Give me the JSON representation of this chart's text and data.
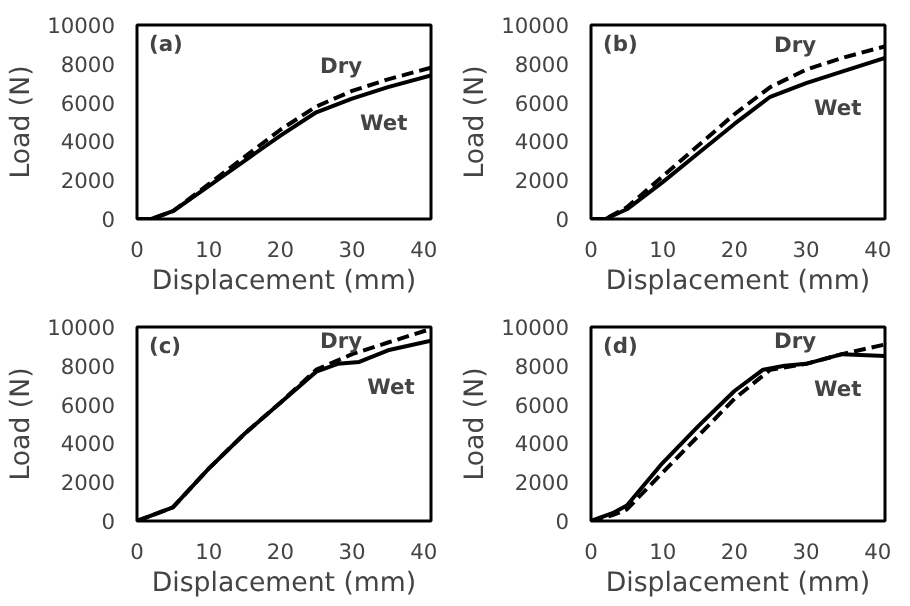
{
  "chart_data": [
    {
      "type": "line",
      "title": "(a)",
      "xlabel": "Displacement (mm)",
      "ylabel": "Load (N)",
      "xlim": [
        0,
        41
      ],
      "ylim": [
        0,
        10000
      ],
      "xticks": [
        0,
        10,
        20,
        30,
        40
      ],
      "yticks": [
        0,
        2000,
        4000,
        6000,
        8000,
        10000
      ],
      "grid": false,
      "legend": false,
      "series": [
        {
          "name": "Dry",
          "color": "#000000",
          "line_style": "dashed",
          "x": [
            0,
            2,
            5,
            10,
            15,
            20,
            25,
            30,
            35,
            41
          ],
          "values": [
            0,
            0,
            400,
            1800,
            3200,
            4600,
            5800,
            6600,
            7200,
            7800
          ]
        },
        {
          "name": "Wet",
          "color": "#000000",
          "line_style": "solid",
          "x": [
            0,
            2,
            5,
            10,
            15,
            20,
            25,
            30,
            35,
            41
          ],
          "values": [
            0,
            0,
            400,
            1700,
            3000,
            4300,
            5500,
            6200,
            6800,
            7400
          ]
        }
      ]
    },
    {
      "type": "line",
      "title": "(b)",
      "xlabel": "Displacement (mm)",
      "ylabel": "Load (N)",
      "xlim": [
        0,
        41
      ],
      "ylim": [
        0,
        10000
      ],
      "xticks": [
        0,
        10,
        20,
        30,
        40
      ],
      "yticks": [
        0,
        2000,
        4000,
        6000,
        8000,
        10000
      ],
      "grid": false,
      "legend": false,
      "series": [
        {
          "name": "Dry",
          "color": "#000000",
          "line_style": "dashed",
          "x": [
            0,
            2,
            5,
            10,
            15,
            20,
            25,
            30,
            35,
            41
          ],
          "values": [
            0,
            0,
            600,
            2200,
            3800,
            5400,
            6800,
            7700,
            8300,
            8900
          ]
        },
        {
          "name": "Wet",
          "color": "#000000",
          "line_style": "solid",
          "x": [
            0,
            2,
            5,
            10,
            15,
            20,
            25,
            30,
            35,
            41
          ],
          "values": [
            0,
            0,
            500,
            1900,
            3400,
            4900,
            6300,
            7000,
            7600,
            8300
          ]
        }
      ]
    },
    {
      "type": "line",
      "title": "(c)",
      "xlabel": "Displacement (mm)",
      "ylabel": "Load (N)",
      "xlim": [
        0,
        41
      ],
      "ylim": [
        0,
        10000
      ],
      "xticks": [
        0,
        10,
        20,
        30,
        40
      ],
      "yticks": [
        0,
        2000,
        4000,
        6000,
        8000,
        10000
      ],
      "grid": false,
      "legend": false,
      "series": [
        {
          "name": "Dry",
          "color": "#000000",
          "line_style": "dashed",
          "x": [
            0,
            5,
            10,
            15,
            20,
            25,
            30,
            35,
            41
          ],
          "values": [
            0,
            700,
            2700,
            4500,
            6100,
            7800,
            8600,
            9200,
            9900
          ]
        },
        {
          "name": "Wet",
          "color": "#000000",
          "line_style": "solid",
          "x": [
            0,
            5,
            10,
            15,
            20,
            25,
            28,
            31,
            35,
            41
          ],
          "values": [
            0,
            700,
            2700,
            4500,
            6100,
            7700,
            8100,
            8200,
            8800,
            9300
          ]
        }
      ]
    },
    {
      "type": "line",
      "title": "(d)",
      "xlabel": "Displacement (mm)",
      "ylabel": "Load (N)",
      "xlim": [
        0,
        41
      ],
      "ylim": [
        0,
        10000
      ],
      "xticks": [
        0,
        10,
        20,
        30,
        40
      ],
      "yticks": [
        0,
        2000,
        4000,
        6000,
        8000,
        10000
      ],
      "grid": false,
      "legend": false,
      "series": [
        {
          "name": "Dry",
          "color": "#000000",
          "line_style": "dashed",
          "x": [
            0,
            3,
            5,
            10,
            15,
            20,
            25,
            30,
            35,
            41
          ],
          "values": [
            0,
            300,
            600,
            2500,
            4400,
            6300,
            7800,
            8100,
            8600,
            9100
          ]
        },
        {
          "name": "Wet",
          "color": "#000000",
          "line_style": "solid",
          "x": [
            0,
            3,
            5,
            10,
            15,
            20,
            24,
            27,
            30,
            35,
            41
          ],
          "values": [
            0,
            400,
            800,
            3000,
            4900,
            6700,
            7800,
            8000,
            8100,
            8600,
            8500
          ]
        }
      ]
    }
  ]
}
